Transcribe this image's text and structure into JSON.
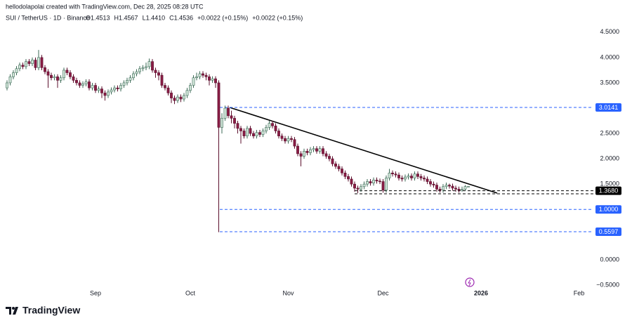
{
  "header": {
    "credit": "hellodolapolai created with TradingView.com, Dec 28, 2025 08:28 UTC",
    "symbol": "SUI / TetherUS · 1D · Binance",
    "ohlc": [
      "O1.4513",
      "H1.4567",
      "L1.4410",
      "C1.4536",
      "+0.0022 (+0.15%)",
      "+0.0022 (+0.15%)"
    ],
    "brand": "TradingView"
  },
  "chart_data": {
    "type": "candlestick",
    "up_color": "#d3e6da",
    "up_border": "#3d6b57",
    "down_color": "#8a1c45",
    "down_border": "#5b0f2c",
    "categories": [
      null,
      null,
      null,
      null,
      null,
      null,
      null,
      null,
      null,
      null,
      null,
      null,
      null,
      null,
      null,
      null,
      null,
      null,
      null,
      null,
      null,
      null,
      null,
      null,
      null,
      null,
      null,
      null,
      "Sep",
      null,
      null,
      null,
      null,
      null,
      null,
      null,
      null,
      null,
      null,
      null,
      null,
      null,
      null,
      null,
      null,
      null,
      null,
      null,
      null,
      null,
      null,
      null,
      null,
      null,
      null,
      null,
      null,
      null,
      "Oct",
      null,
      null,
      null,
      null,
      null,
      null,
      null,
      null,
      null,
      null,
      null,
      null,
      null,
      null,
      null,
      null,
      null,
      null,
      null,
      null,
      null,
      null,
      null,
      null,
      null,
      null,
      null,
      null,
      null,
      null,
      "Nov",
      null,
      null,
      null,
      null,
      null,
      null,
      null,
      null,
      null,
      null,
      null,
      null,
      null,
      null,
      null,
      null,
      null,
      null,
      null,
      null,
      null,
      null,
      null,
      null,
      null,
      null,
      null,
      null,
      null,
      "Dec",
      null,
      null,
      null,
      null,
      null,
      null,
      null,
      null,
      null,
      null,
      null,
      null,
      null,
      null,
      null,
      null,
      null,
      null,
      null,
      null,
      null,
      null,
      null,
      null,
      null,
      null,
      null,
      null,
      null,
      null,
      "2026",
      null,
      null,
      null,
      null,
      null,
      null,
      null,
      null,
      null,
      null,
      null,
      null,
      null,
      null,
      null,
      null,
      null,
      null,
      null,
      null,
      null,
      null,
      null,
      null,
      null,
      null,
      null,
      null,
      null,
      null,
      "Feb",
      null,
      null,
      null
    ],
    "open": [
      3.4,
      3.5,
      3.62,
      3.7,
      3.78,
      3.85,
      3.82,
      3.92,
      3.88,
      3.95,
      3.8,
      4.0,
      3.8,
      3.72,
      3.65,
      3.6,
      3.62,
      3.55,
      3.6,
      3.75,
      3.7,
      3.62,
      3.55,
      3.5,
      3.45,
      3.48,
      3.52,
      3.4,
      3.45,
      3.35,
      3.38,
      3.3,
      3.25,
      3.32,
      3.36,
      3.4,
      3.38,
      3.45,
      3.5,
      3.55,
      3.6,
      3.68,
      3.72,
      3.78,
      3.8,
      3.82,
      3.92,
      3.75,
      3.7,
      3.65,
      3.45,
      3.4,
      3.3,
      3.2,
      3.15,
      3.22,
      3.18,
      3.25,
      3.35,
      3.45,
      3.6,
      3.62,
      3.68,
      3.65,
      3.62,
      3.55,
      3.58,
      3.5,
      2.62,
      2.8,
      3.0,
      2.85,
      2.8,
      2.7,
      2.6,
      2.55,
      2.45,
      2.6,
      2.5,
      2.45,
      2.52,
      2.48,
      2.55,
      2.62,
      2.7,
      2.65,
      2.55,
      2.45,
      2.4,
      2.35,
      2.4,
      2.38,
      2.25,
      2.1,
      2.05,
      2.15,
      2.12,
      2.18,
      2.2,
      2.15,
      2.2,
      2.1,
      2.05,
      2.0,
      1.9,
      1.85,
      1.8,
      1.72,
      1.65,
      1.6,
      1.5,
      1.42,
      1.4,
      1.45,
      1.5,
      1.55,
      1.52,
      1.58,
      1.56,
      1.55,
      1.38,
      1.62,
      1.72,
      1.7,
      1.68,
      1.62,
      1.6,
      1.64,
      1.66,
      1.62,
      1.7,
      1.65,
      1.62,
      1.6,
      1.55,
      1.5,
      1.48,
      1.4,
      1.38,
      1.45,
      1.48,
      1.46,
      1.42,
      1.4,
      1.38,
      1.4,
      1.4513,
      null,
      null,
      null,
      null,
      null,
      null,
      null,
      null,
      null,
      null,
      null,
      null,
      null,
      null,
      null,
      null,
      null,
      null,
      null,
      null,
      null,
      null,
      null,
      null,
      null,
      null,
      null,
      null,
      null,
      null,
      null,
      null,
      null,
      null,
      null,
      null,
      null,
      null
    ],
    "high": [
      3.55,
      3.67,
      3.75,
      3.83,
      3.9,
      3.9,
      3.97,
      3.97,
      4.0,
      4.0,
      4.15,
      4.05,
      3.85,
      3.77,
      3.7,
      3.67,
      3.67,
      3.65,
      3.8,
      3.8,
      3.75,
      3.67,
      3.6,
      3.55,
      3.53,
      3.57,
      3.57,
      3.5,
      3.5,
      3.43,
      3.43,
      3.35,
      3.37,
      3.41,
      3.45,
      3.45,
      3.5,
      3.55,
      3.6,
      3.65,
      3.73,
      3.77,
      3.83,
      3.85,
      3.9,
      3.98,
      3.97,
      3.8,
      3.75,
      3.7,
      3.5,
      3.45,
      3.35,
      3.25,
      3.27,
      3.27,
      3.3,
      3.4,
      3.5,
      3.65,
      3.7,
      3.73,
      3.73,
      3.7,
      3.67,
      3.63,
      3.63,
      3.55,
      2.9,
      3.05,
      3.05,
      2.95,
      2.85,
      2.75,
      2.65,
      2.6,
      2.65,
      2.65,
      2.55,
      2.57,
      2.57,
      2.6,
      2.67,
      2.75,
      2.75,
      2.7,
      2.6,
      2.5,
      2.45,
      2.45,
      2.45,
      2.43,
      2.3,
      2.15,
      2.2,
      2.2,
      2.23,
      2.25,
      2.25,
      2.25,
      2.25,
      2.15,
      2.1,
      2.05,
      1.95,
      1.9,
      1.85,
      1.77,
      1.7,
      1.65,
      1.55,
      1.47,
      1.5,
      1.55,
      1.6,
      1.6,
      1.63,
      1.63,
      1.61,
      1.6,
      1.67,
      1.8,
      1.77,
      1.75,
      1.73,
      1.67,
      1.69,
      1.71,
      1.71,
      1.75,
      1.75,
      1.7,
      1.67,
      1.65,
      1.6,
      1.55,
      1.53,
      1.45,
      1.5,
      1.53,
      1.51,
      1.51,
      1.47,
      1.45,
      1.45,
      1.48,
      1.4567,
      null,
      null,
      null,
      null,
      null,
      null,
      null,
      null,
      null,
      null,
      null,
      null,
      null,
      null,
      null,
      null,
      null,
      null,
      null,
      null,
      null,
      null,
      null,
      null,
      null,
      null,
      null,
      null,
      null,
      null,
      null,
      null,
      null,
      null,
      null,
      null,
      null,
      null
    ],
    "low": [
      3.35,
      3.45,
      3.57,
      3.65,
      3.73,
      3.77,
      3.77,
      3.83,
      3.83,
      3.75,
      3.75,
      3.75,
      3.67,
      3.4,
      3.55,
      3.55,
      3.4,
      3.5,
      3.55,
      3.65,
      3.57,
      3.5,
      3.45,
      3.4,
      3.4,
      3.43,
      3.35,
      3.35,
      3.3,
      3.3,
      3.2,
      3.15,
      3.2,
      3.27,
      3.31,
      3.33,
      3.33,
      3.4,
      3.45,
      3.5,
      3.55,
      3.63,
      3.67,
      3.73,
      3.75,
      3.77,
      3.7,
      3.6,
      3.55,
      3.4,
      3.35,
      3.25,
      3.1,
      3.08,
      3.1,
      3.12,
      3.13,
      3.2,
      3.3,
      3.4,
      3.55,
      3.57,
      3.6,
      3.55,
      3.45,
      3.5,
      3.4,
      0.55,
      2.5,
      2.75,
      2.8,
      2.7,
      2.6,
      2.5,
      2.3,
      2.4,
      2.4,
      2.45,
      2.4,
      2.4,
      2.43,
      2.43,
      2.5,
      2.57,
      2.6,
      2.5,
      2.4,
      2.35,
      2.3,
      2.3,
      2.33,
      2.2,
      2.05,
      1.85,
      2.0,
      2.07,
      2.07,
      2.13,
      2.1,
      2.1,
      2.05,
      2.0,
      1.95,
      1.85,
      1.8,
      1.75,
      1.67,
      1.6,
      1.55,
      1.45,
      1.35,
      1.32,
      1.35,
      1.4,
      1.45,
      1.47,
      1.47,
      1.51,
      1.5,
      1.33,
      1.33,
      1.57,
      1.65,
      1.63,
      1.57,
      1.55,
      1.55,
      1.59,
      1.57,
      1.57,
      1.6,
      1.57,
      1.55,
      1.5,
      1.45,
      1.43,
      1.35,
      1.33,
      1.33,
      1.4,
      1.41,
      1.37,
      1.35,
      1.33,
      1.35,
      1.37,
      1.441,
      null,
      null,
      null,
      null,
      null,
      null,
      null,
      null,
      null,
      null,
      null,
      null,
      null,
      null,
      null,
      null,
      null,
      null,
      null,
      null,
      null,
      null,
      null,
      null,
      null,
      null,
      null,
      null,
      null,
      null,
      null,
      null,
      null,
      null,
      null,
      null,
      null,
      null
    ],
    "close": [
      3.5,
      3.62,
      3.7,
      3.78,
      3.85,
      3.82,
      3.92,
      3.88,
      3.95,
      3.8,
      4.0,
      3.8,
      3.72,
      3.65,
      3.6,
      3.62,
      3.55,
      3.6,
      3.75,
      3.7,
      3.62,
      3.55,
      3.5,
      3.45,
      3.48,
      3.52,
      3.4,
      3.45,
      3.35,
      3.38,
      3.3,
      3.25,
      3.32,
      3.36,
      3.4,
      3.38,
      3.45,
      3.5,
      3.55,
      3.6,
      3.68,
      3.72,
      3.78,
      3.8,
      3.82,
      3.92,
      3.75,
      3.7,
      3.65,
      3.45,
      3.4,
      3.3,
      3.2,
      3.15,
      3.22,
      3.18,
      3.25,
      3.35,
      3.45,
      3.6,
      3.62,
      3.68,
      3.65,
      3.62,
      3.55,
      3.58,
      3.5,
      2.62,
      2.8,
      3.0,
      2.85,
      2.8,
      2.7,
      2.6,
      2.55,
      2.45,
      2.6,
      2.5,
      2.45,
      2.52,
      2.48,
      2.55,
      2.62,
      2.7,
      2.65,
      2.55,
      2.45,
      2.4,
      2.35,
      2.4,
      2.38,
      2.25,
      2.1,
      2.05,
      2.15,
      2.12,
      2.18,
      2.2,
      2.15,
      2.2,
      2.1,
      2.05,
      2.0,
      1.9,
      1.85,
      1.8,
      1.72,
      1.65,
      1.6,
      1.5,
      1.42,
      1.4,
      1.45,
      1.5,
      1.55,
      1.52,
      1.58,
      1.56,
      1.55,
      1.38,
      1.62,
      1.72,
      1.7,
      1.68,
      1.62,
      1.6,
      1.64,
      1.66,
      1.62,
      1.7,
      1.65,
      1.62,
      1.6,
      1.55,
      1.5,
      1.48,
      1.4,
      1.38,
      1.45,
      1.48,
      1.46,
      1.42,
      1.4,
      1.38,
      1.4,
      1.4513,
      1.4536,
      null,
      null,
      null,
      null,
      null,
      null,
      null,
      null,
      null,
      null,
      null,
      null,
      null,
      null,
      null,
      null,
      null,
      null,
      null,
      null,
      null,
      null,
      null,
      null,
      null,
      null,
      null,
      null,
      null,
      null,
      null,
      null,
      null,
      null,
      null,
      null,
      null,
      null
    ],
    "ylim": [
      -0.8,
      4.72
    ],
    "yticks": [
      {
        "value": 4.5,
        "label": "4.5000"
      },
      {
        "value": 4,
        "label": "4.0000"
      },
      {
        "value": 3.5,
        "label": "3.5000"
      },
      {
        "value": 2.5,
        "label": "2.5000"
      },
      {
        "value": 2,
        "label": "2.0000"
      },
      {
        "value": 1.5,
        "label": "1.5000"
      },
      {
        "value": 0,
        "label": "0.0000"
      },
      {
        "value": -0.5,
        "label": "−0.5000"
      }
    ],
    "grid": false,
    "levels": [
      {
        "value": 3.0141,
        "label": "3.0141",
        "color": "#2962ff"
      },
      {
        "value": 1.368,
        "label": "1.3680",
        "color": "#000000"
      },
      {
        "value": 1,
        "label": "1.0000",
        "color": "#2962ff"
      },
      {
        "value": 0.5597,
        "label": "0.5597",
        "color": "#2962ff"
      }
    ]
  }
}
